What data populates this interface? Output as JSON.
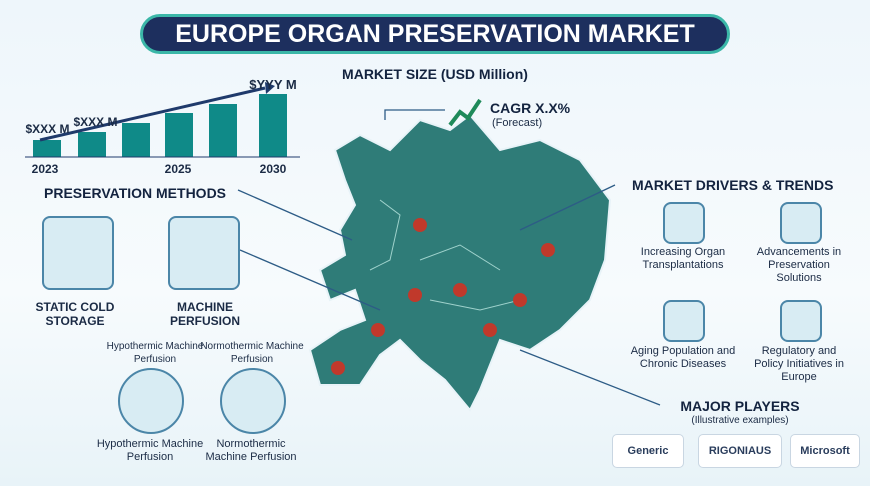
{
  "header": {
    "title": "EUROPE ORGAN PRESERVATION MARKET"
  },
  "market_size": {
    "title": "MARKET SIZE (USD Million)",
    "labels": [
      "$XXX M",
      "$XXX M",
      "$YYY M"
    ],
    "years": [
      "2023",
      "2025",
      "2030"
    ]
  },
  "cagr": {
    "label": "CAGR X.X%",
    "note": "(Forecast)"
  },
  "methods": {
    "title": "PRESERVATION METHODS",
    "items": [
      "STATIC COLD STORAGE",
      "MACHINE PERFUSION"
    ],
    "sub_items": [
      "Hypothermic Machine Perfusion",
      "Normothermic Machine Perfusion"
    ],
    "devices": [
      "Hypothermic Machine Perfusion",
      "Normothermic Machine Perfusion"
    ]
  },
  "drivers": {
    "title": "MARKET DRIVERS & TRENDS",
    "items": [
      "Increasing Organ Transplantations",
      "Advancements in Preservation Solutions",
      "Aging Population and Chronic Diseases",
      "Regulatory and Policy Initiatives in Europe"
    ]
  },
  "players": {
    "title": "MAJOR PLAYERS",
    "subtitle": "(Illustrative examples)",
    "logos": [
      "Generic",
      "RIGONIAUS",
      "Microsoft"
    ]
  }
}
